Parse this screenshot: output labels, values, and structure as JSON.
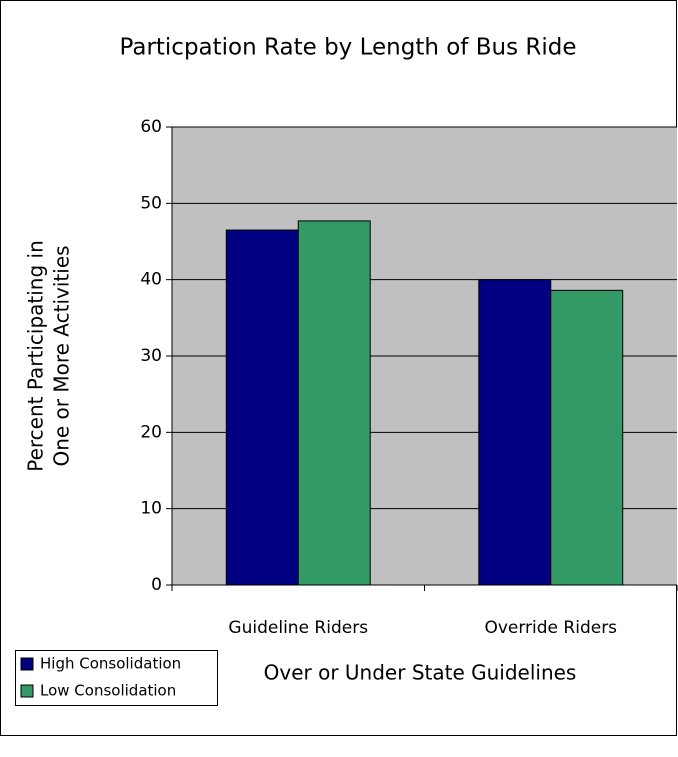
{
  "chart_data": {
    "type": "bar",
    "title": "Particpation Rate by Length of Bus Ride",
    "y_label": [
      "Percent Participating in",
      "One or More Activities"
    ],
    "x_label": "Over or Under State Guidelines",
    "categories": [
      "Guideline Riders",
      "Override Riders"
    ],
    "series": [
      {
        "name": "High Consolidation",
        "color": "#000080",
        "values": [
          46.5,
          40
        ]
      },
      {
        "name": "Low Consolidation",
        "color": "#339966",
        "values": [
          47.7,
          38.6
        ]
      }
    ],
    "ylim": [
      0,
      60
    ],
    "yticks": [
      0,
      10,
      20,
      30,
      40,
      50,
      60
    ],
    "grid": true,
    "legend": "bottom-left"
  }
}
